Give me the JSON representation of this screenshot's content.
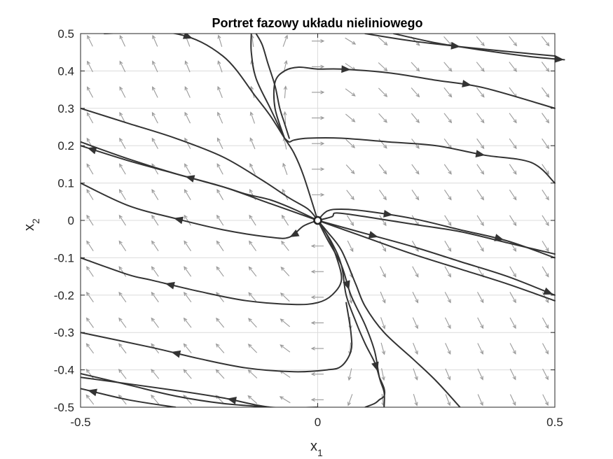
{
  "chart_data": {
    "type": "line",
    "subtype": "phase-portrait",
    "title": "Portret fazowy układu nieliniowego",
    "xlabel": "x",
    "xlabel_sub": "1",
    "ylabel": "x",
    "ylabel_sub": "2",
    "xlim": [
      -0.5,
      0.5
    ],
    "ylim": [
      -0.5,
      0.5
    ],
    "xticks": [
      -0.5,
      0,
      0.5
    ],
    "xtick_labels": [
      "-0.5",
      "0",
      "0.5"
    ],
    "yticks": [
      -0.5,
      -0.4,
      -0.3,
      -0.2,
      -0.1,
      0,
      0.1,
      0.2,
      0.3,
      0.4,
      0.5
    ],
    "ytick_labels": [
      "-0.5",
      "-0.4",
      "-0.3",
      "-0.2",
      "-0.1",
      "0",
      "0.1",
      "0.2",
      "0.3",
      "0.4",
      "0.5"
    ],
    "grid": true,
    "colors": {
      "trajectory": "#333333",
      "vector_field": "#9a9a9a",
      "grid": "#dcdcdc",
      "axes": "#262626"
    },
    "equilibrium": {
      "x": 0,
      "y": 0,
      "marker": "open-circle"
    },
    "vector_field": {
      "x_range": [
        -0.48,
        0.48
      ],
      "y_range": [
        -0.48,
        0.48
      ],
      "n": 15,
      "description": "gray arrows pointing to the right in the upper-right half-plane and to the left in the lower-left half-plane, with vertical flow near x1 = 0"
    },
    "trajectories": [
      {
        "points": [
          [
            0.1,
            0.5
          ],
          [
            0.2,
            0.48
          ],
          [
            0.3,
            0.465
          ],
          [
            0.4,
            0.452
          ],
          [
            0.5,
            0.44
          ]
        ],
        "arrows": [
          {
            "at": 0.5,
            "dir": 1
          }
        ]
      },
      {
        "points": [
          [
            0.16,
            0.5
          ],
          [
            0.25,
            0.475
          ],
          [
            0.35,
            0.455
          ],
          [
            0.45,
            0.438
          ],
          [
            0.52,
            0.43
          ]
        ],
        "arrows": [
          {
            "at": 0.999,
            "dir": 1
          }
        ]
      },
      {
        "points": [
          [
            -0.06,
            0.22
          ],
          [
            -0.07,
            0.26
          ],
          [
            -0.08,
            0.3
          ],
          [
            -0.09,
            0.36
          ],
          [
            -0.105,
            0.42
          ],
          [
            -0.117,
            0.47
          ],
          [
            -0.13,
            0.5
          ]
        ],
        "arrows": []
      },
      {
        "points": [
          [
            -0.45,
            0.5
          ],
          [
            -0.3,
            0.5
          ],
          [
            -0.2,
            0.44
          ],
          [
            -0.13,
            0.33
          ],
          [
            -0.1,
            0.28
          ],
          [
            -0.07,
            0.22
          ],
          [
            -0.05,
            0.18
          ],
          [
            -0.03,
            0.12
          ],
          [
            0,
            0
          ]
        ],
        "arrows": [
          {
            "at": 0.28,
            "dir": 1
          }
        ]
      },
      {
        "points": [
          [
            -0.07,
            0.22
          ],
          [
            -0.1,
            0.3
          ],
          [
            -0.13,
            0.38
          ],
          [
            -0.14,
            0.45
          ],
          [
            -0.14,
            0.5
          ]
        ],
        "arrows": []
      },
      {
        "points": [
          [
            -0.07,
            0.22
          ],
          [
            -0.09,
            0.3
          ],
          [
            -0.09,
            0.37
          ],
          [
            -0.07,
            0.4
          ],
          [
            -0.04,
            0.41
          ],
          [
            0,
            0.405
          ],
          [
            0.05,
            0.405
          ],
          [
            0.15,
            0.395
          ],
          [
            0.25,
            0.375
          ],
          [
            0.35,
            0.355
          ],
          [
            0.5,
            0.3
          ]
        ],
        "arrows": [
          {
            "at": 0.4,
            "dir": 1
          },
          {
            "at": 0.75,
            "dir": 1
          }
        ]
      },
      {
        "points": [
          [
            -0.07,
            0.22
          ],
          [
            -0.06,
            0.21
          ],
          [
            -0.05,
            0.215
          ],
          [
            -0.02,
            0.22
          ],
          [
            0.05,
            0.22
          ],
          [
            0.15,
            0.21
          ],
          [
            0.25,
            0.2
          ],
          [
            0.35,
            0.175
          ],
          [
            0.45,
            0.155
          ],
          [
            0.5,
            0.1
          ]
        ],
        "arrows": [
          {
            "at": 0.72,
            "dir": 1
          }
        ]
      },
      {
        "points": [
          [
            -0.5,
            0.3
          ],
          [
            -0.4,
            0.26
          ],
          [
            -0.3,
            0.22
          ],
          [
            -0.2,
            0.17
          ],
          [
            -0.12,
            0.11
          ],
          [
            -0.06,
            0.06
          ],
          [
            -0.02,
            0.03
          ],
          [
            0,
            0
          ]
        ],
        "arrows": []
      },
      {
        "points": [
          [
            0,
            0
          ],
          [
            -0.05,
            0.03
          ],
          [
            -0.1,
            0.055
          ],
          [
            -0.15,
            0.07
          ],
          [
            -0.2,
            0.09
          ],
          [
            -0.3,
            0.125
          ],
          [
            -0.4,
            0.16
          ],
          [
            -0.5,
            0.2
          ]
        ],
        "arrows": [
          {
            "at": 0.56,
            "dir": 1
          },
          {
            "at": 0.97,
            "dir": 1
          }
        ]
      },
      {
        "points": [
          [
            0,
            0
          ],
          [
            -0.1,
            0.045
          ],
          [
            -0.2,
            0.09
          ],
          [
            -0.3,
            0.125
          ],
          [
            -0.4,
            0.165
          ],
          [
            -0.5,
            0.21
          ]
        ],
        "arrows": []
      },
      {
        "points": [
          [
            0,
            0
          ],
          [
            0.02,
            0.025
          ],
          [
            0.05,
            0.03
          ],
          [
            0.1,
            0.025
          ],
          [
            0.2,
            0.005
          ],
          [
            0.3,
            -0.025
          ],
          [
            0.4,
            -0.055
          ],
          [
            0.5,
            -0.1
          ]
        ],
        "arrows": [
          {
            "at": 0.32,
            "dir": 1
          },
          {
            "at": 0.78,
            "dir": 1
          }
        ]
      },
      {
        "points": [
          [
            0,
            0
          ],
          [
            0.1,
            -0.035
          ],
          [
            0.2,
            -0.07
          ],
          [
            0.3,
            -0.11
          ],
          [
            0.4,
            -0.15
          ],
          [
            0.5,
            -0.2
          ]
        ],
        "arrows": [
          {
            "at": 0.25,
            "dir": 1
          },
          {
            "at": 0.99,
            "dir": 1
          }
        ]
      },
      {
        "points": [
          [
            0,
            0
          ],
          [
            0.1,
            -0.045
          ],
          [
            0.2,
            -0.09
          ],
          [
            0.3,
            -0.13
          ],
          [
            0.4,
            -0.17
          ],
          [
            0.5,
            -0.215
          ]
        ],
        "arrows": []
      },
      {
        "points": [
          [
            0,
            0
          ],
          [
            0.02,
            -0.03
          ],
          [
            0.05,
            -0.08
          ],
          [
            0.08,
            -0.17
          ],
          [
            0.1,
            -0.23
          ],
          [
            0.14,
            -0.3
          ],
          [
            0.2,
            -0.37
          ],
          [
            0.25,
            -0.43
          ],
          [
            0.3,
            -0.5
          ]
        ],
        "arrows": []
      },
      {
        "points": [
          [
            0,
            0
          ],
          [
            0.02,
            -0.05
          ],
          [
            0.05,
            -0.12
          ],
          [
            0.07,
            -0.2
          ],
          [
            0.1,
            -0.28
          ],
          [
            0.12,
            -0.35
          ],
          [
            0.13,
            -0.42
          ],
          [
            0.14,
            -0.46
          ],
          [
            0.14,
            -0.5
          ]
        ],
        "arrows": [
          {
            "at": 0.38,
            "dir": 1
          }
        ]
      },
      {
        "points": [
          [
            0,
            0
          ],
          [
            0.03,
            -0.06
          ],
          [
            0.05,
            -0.12
          ],
          [
            0.06,
            -0.2
          ],
          [
            0.08,
            -0.27
          ],
          [
            0.1,
            -0.33
          ],
          [
            0.12,
            -0.38
          ],
          [
            0.13,
            -0.42
          ]
        ],
        "arrows": [
          {
            "at": 0.96,
            "dir": 1
          }
        ]
      },
      {
        "points": [
          [
            0.13,
            -0.42
          ],
          [
            0.14,
            -0.45
          ],
          [
            0.14,
            -0.47
          ],
          [
            0.13,
            -0.48
          ],
          [
            0.12,
            -0.49
          ],
          [
            0.1,
            -0.5
          ]
        ],
        "arrows": []
      },
      {
        "points": [
          [
            0,
            0
          ],
          [
            0.03,
            0.01
          ],
          [
            0.04,
            0.02
          ],
          [
            0.1,
            0.01
          ],
          [
            0.2,
            -0.01
          ],
          [
            0.3,
            -0.03
          ],
          [
            0.4,
            -0.06
          ],
          [
            0.5,
            -0.09
          ]
        ],
        "arrows": []
      },
      {
        "points": [
          [
            0,
            0
          ],
          [
            -0.03,
            -0.015
          ],
          [
            -0.06,
            -0.045
          ],
          [
            -0.1,
            -0.045
          ],
          [
            -0.2,
            -0.025
          ],
          [
            -0.3,
            0.005
          ],
          [
            -0.4,
            0.04
          ],
          [
            -0.5,
            0.1
          ]
        ],
        "arrows": [
          {
            "at": 0.13,
            "dir": 1
          },
          {
            "at": 0.6,
            "dir": 1
          }
        ]
      },
      {
        "points": [
          [
            0,
            0
          ],
          [
            0.02,
            -0.04
          ],
          [
            0.04,
            -0.1
          ],
          [
            0.05,
            -0.16
          ],
          [
            0.03,
            -0.2
          ],
          [
            0,
            -0.22
          ],
          [
            -0.05,
            -0.225
          ],
          [
            -0.15,
            -0.215
          ],
          [
            -0.25,
            -0.19
          ],
          [
            -0.35,
            -0.16
          ],
          [
            -0.4,
            -0.145
          ],
          [
            -0.5,
            -0.1
          ]
        ],
        "arrows": [
          {
            "at": 0.74,
            "dir": 1
          }
        ]
      },
      {
        "points": [
          [
            0.06,
            -0.22
          ],
          [
            0.07,
            -0.3
          ],
          [
            0.07,
            -0.35
          ],
          [
            0.05,
            -0.39
          ],
          [
            0.02,
            -0.4
          ],
          [
            -0.05,
            -0.405
          ],
          [
            -0.15,
            -0.395
          ],
          [
            -0.25,
            -0.37
          ],
          [
            -0.35,
            -0.34
          ],
          [
            -0.5,
            -0.3
          ]
        ],
        "arrows": [
          {
            "at": 0.72,
            "dir": 1
          }
        ]
      },
      {
        "points": [
          [
            -0.1,
            -0.5
          ],
          [
            -0.2,
            -0.49
          ],
          [
            -0.3,
            -0.47
          ],
          [
            -0.4,
            -0.44
          ],
          [
            -0.5,
            -0.41
          ]
        ],
        "arrows": []
      },
      {
        "points": [
          [
            -0.3,
            -0.5
          ],
          [
            -0.4,
            -0.48
          ],
          [
            -0.5,
            -0.45
          ]
        ],
        "arrows": [
          {
            "at": 0.92,
            "dir": 1
          }
        ]
      },
      {
        "points": [
          [
            0,
            -0.5
          ],
          [
            -0.1,
            -0.5
          ],
          [
            -0.2,
            -0.475
          ],
          [
            -0.3,
            -0.455
          ],
          [
            -0.5,
            -0.42
          ]
        ],
        "arrows": [
          {
            "at": 0.38,
            "dir": 1
          }
        ]
      }
    ]
  }
}
